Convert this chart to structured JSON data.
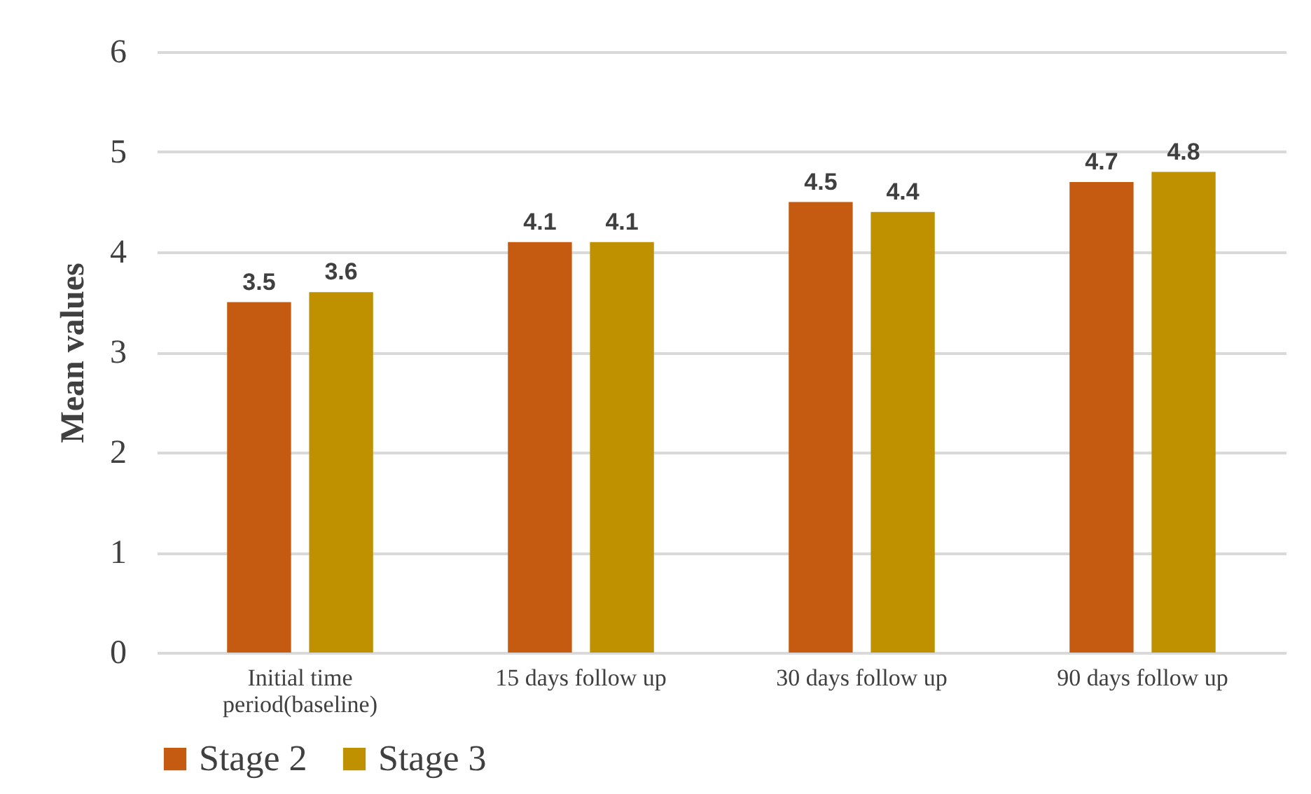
{
  "chart_data": {
    "type": "bar",
    "ylabel": "Mean values",
    "categories": [
      "Initial time period(baseline)",
      "15 days follow up",
      "30 days follow up",
      "90 days follow up"
    ],
    "series": [
      {
        "name": "Stage 2",
        "color": "#c55a11",
        "values": [
          3.5,
          4.1,
          4.5,
          4.7
        ]
      },
      {
        "name": "Stage 3",
        "color": "#bf9000",
        "values": [
          3.6,
          4.1,
          4.4,
          4.8
        ]
      }
    ],
    "ylim": [
      0,
      6
    ],
    "yticks": [
      0,
      1,
      2,
      3,
      4,
      5,
      6
    ],
    "grid": "y",
    "legend": "bottom",
    "data_labels": true
  }
}
